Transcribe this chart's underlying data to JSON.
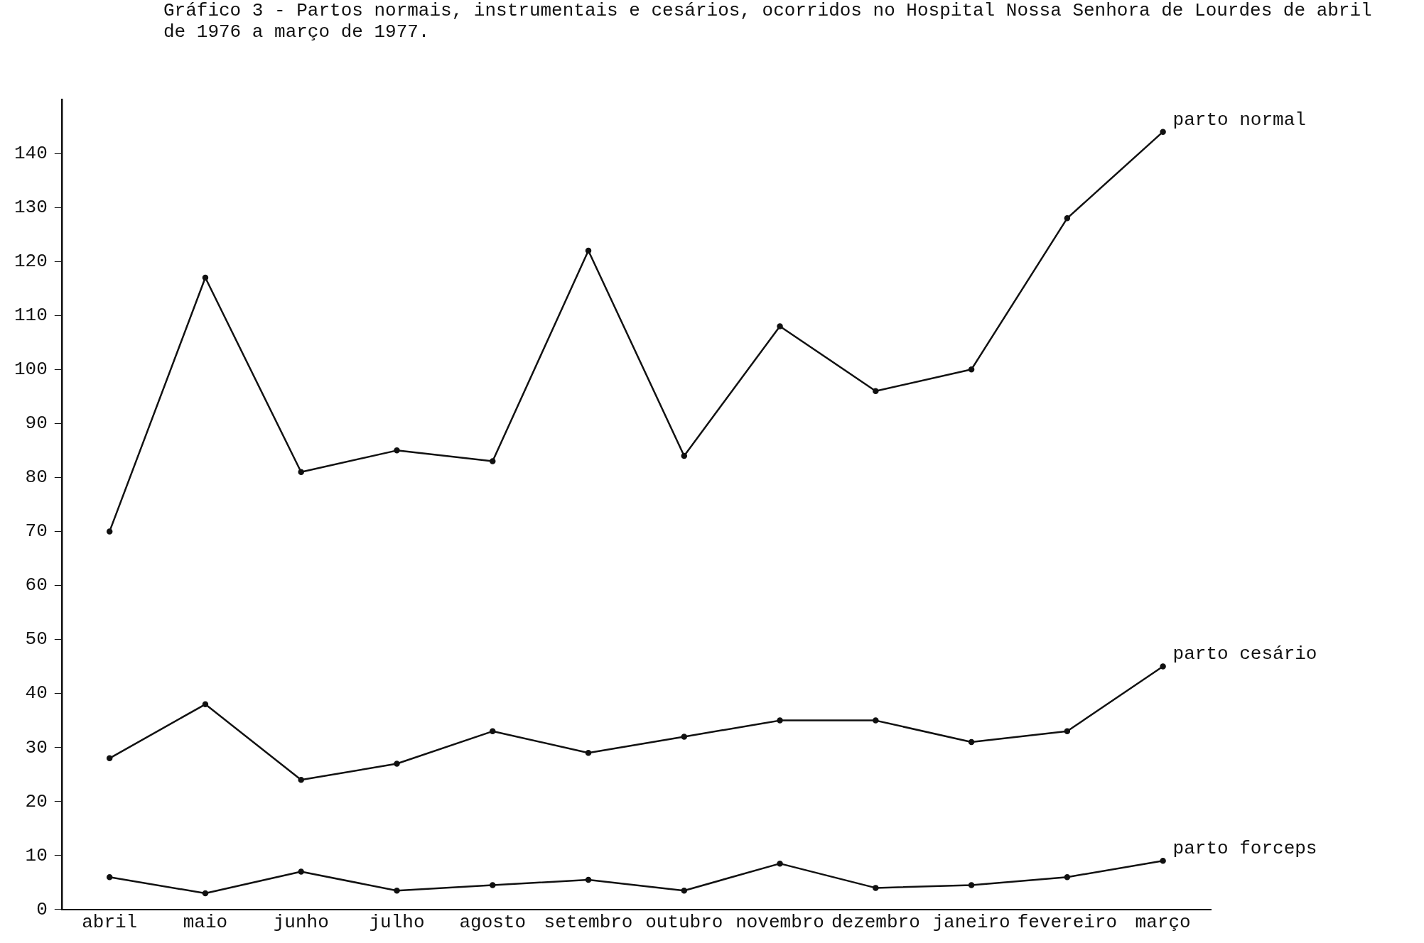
{
  "chart_data": {
    "type": "line",
    "title": "Gráfico 3 - Partos normais, instrumentais e cesários, ocorridos no Hospital Nossa Senhora de Lourdes de abril de 1976 a março de 1977.",
    "categories": [
      "abril",
      "maio",
      "junho",
      "julho",
      "agosto",
      "setembro",
      "outubro",
      "novembro",
      "dezembro",
      "janeiro",
      "fevereiro",
      "março"
    ],
    "series": [
      {
        "name": "parto normal",
        "color": "#111111",
        "values": [
          70,
          117,
          81,
          85,
          83,
          122,
          84,
          108,
          96,
          100,
          128,
          144
        ]
      },
      {
        "name": "parto cesário",
        "color": "#111111",
        "values": [
          28,
          38,
          24,
          27,
          33,
          29,
          32,
          35,
          35,
          31,
          33,
          45
        ]
      },
      {
        "name": "parto forceps",
        "color": "#111111",
        "values": [
          6,
          3,
          7,
          3.5,
          4.5,
          5.5,
          3.5,
          8.5,
          4,
          4.5,
          6,
          9
        ]
      }
    ],
    "ylim": [
      0,
      150
    ],
    "yticks": [
      0,
      10,
      20,
      30,
      40,
      50,
      60,
      70,
      80,
      90,
      100,
      110,
      120,
      130,
      140
    ],
    "grid": false,
    "legend": false,
    "marker": "circle",
    "line_style": "solid"
  }
}
